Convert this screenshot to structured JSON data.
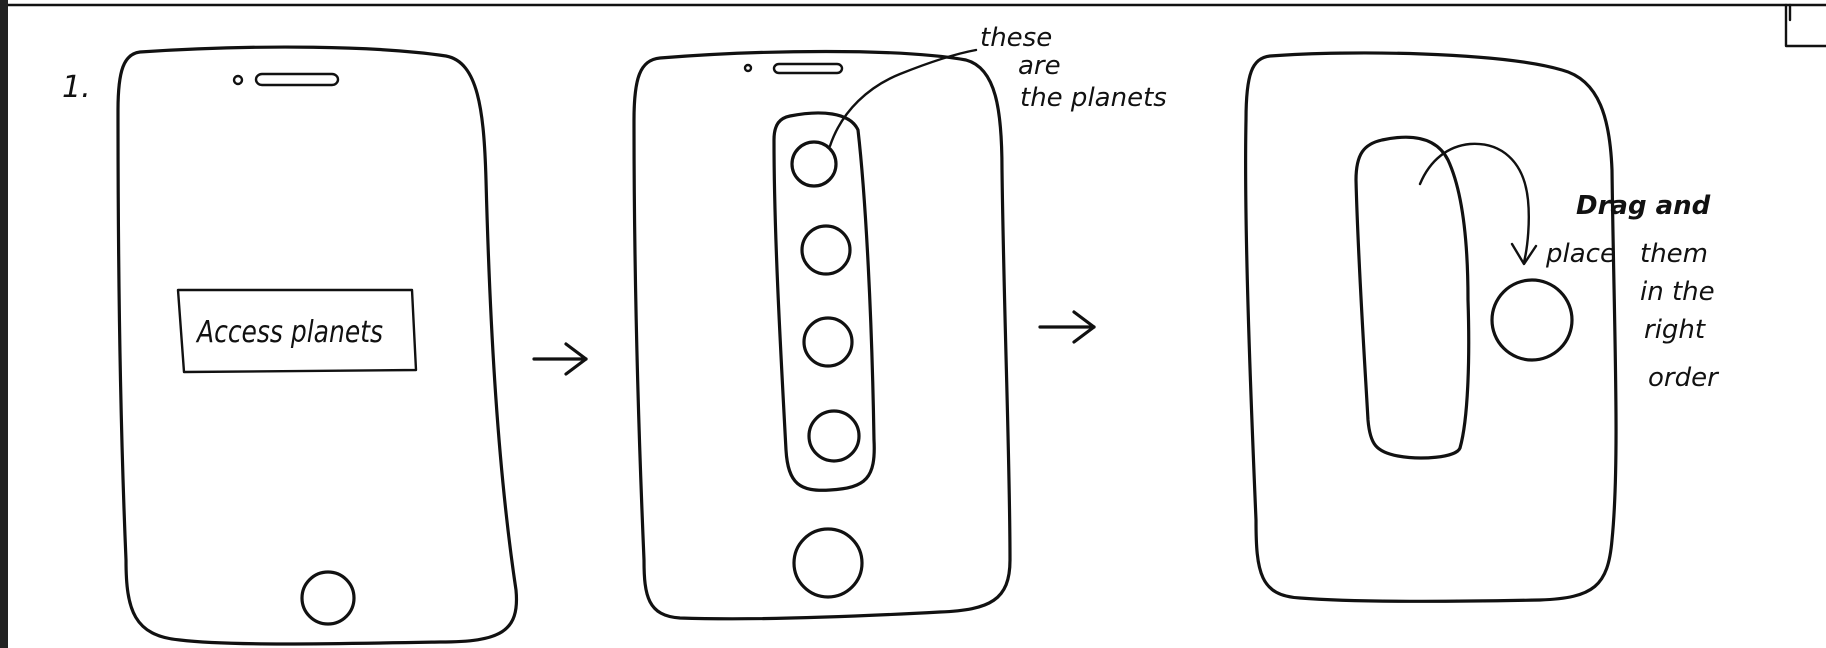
{
  "step_number": "1.",
  "screen1": {
    "button_label": "Access planets"
  },
  "screen2": {
    "annotation_line1": "these",
    "annotation_line2": "are",
    "annotation_line3": "the planets"
  },
  "screen3": {
    "annotation_line1": "Drag and",
    "annotation_line2": "place",
    "annotation_line3": "them",
    "annotation_line4": "in the",
    "annotation_line5": "right",
    "annotation_line6": "order"
  },
  "colors": {
    "ink": "#111111",
    "paper": "#ffffff"
  }
}
